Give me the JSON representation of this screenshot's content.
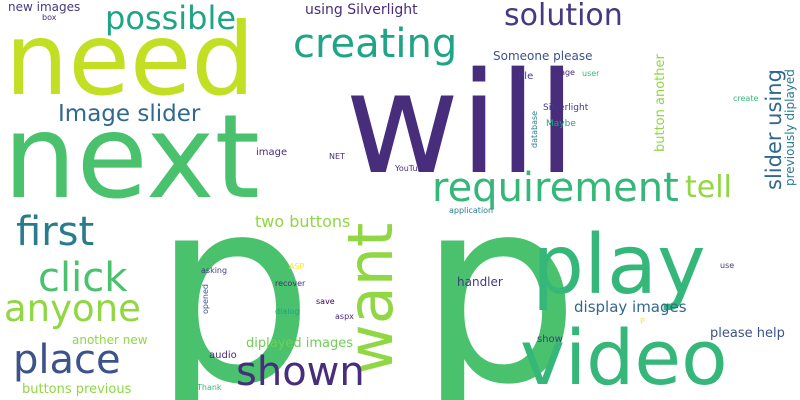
{
  "colors": {
    "purple": "#440154",
    "indigo": "#472d7b",
    "deepblue": "#443983",
    "slate": "#3b528b",
    "steel": "#31688e",
    "teal": "#287c8e",
    "teal2": "#21918c",
    "sea": "#20a486",
    "green": "#35b779",
    "brightgreen": "#4ac16d",
    "lime": "#6ece58",
    "lightlime": "#90d743",
    "yellowgreen": "#c2df23",
    "yellow": "#fde725"
  },
  "words": [
    {
      "text": "p"
    },
    {
      "text": "p"
    },
    {
      "text": "will"
    },
    {
      "text": "next"
    },
    {
      "text": "need"
    },
    {
      "text": "video"
    },
    {
      "text": "play"
    },
    {
      "text": "want"
    },
    {
      "text": "requirement"
    },
    {
      "text": "place"
    },
    {
      "text": "first"
    },
    {
      "text": "click"
    },
    {
      "text": "anyone"
    },
    {
      "text": "shown"
    },
    {
      "text": "creating"
    },
    {
      "text": "solution"
    },
    {
      "text": "possible"
    },
    {
      "text": "tell"
    },
    {
      "text": "Image slider"
    },
    {
      "text": "slider using"
    },
    {
      "text": "two buttons"
    },
    {
      "text": "display images"
    },
    {
      "text": "using Silverlight"
    },
    {
      "text": "new images"
    },
    {
      "text": "diplayed images"
    },
    {
      "text": "buttons previous"
    },
    {
      "text": "another new"
    },
    {
      "text": "please help"
    },
    {
      "text": "button another"
    },
    {
      "text": "previously diplayed"
    },
    {
      "text": "Someone please"
    },
    {
      "text": "handler"
    },
    {
      "text": "file"
    },
    {
      "text": "image"
    },
    {
      "text": "audio"
    },
    {
      "text": "show"
    },
    {
      "text": "Silverlight"
    },
    {
      "text": "Maybe"
    },
    {
      "text": "database"
    },
    {
      "text": "page"
    },
    {
      "text": "user"
    },
    {
      "text": "box"
    },
    {
      "text": "create"
    },
    {
      "text": "NET"
    },
    {
      "text": "YouTube"
    },
    {
      "text": "application"
    },
    {
      "text": "asking"
    },
    {
      "text": "ASP"
    },
    {
      "text": "recover"
    },
    {
      "text": "opened"
    },
    {
      "text": "dialog"
    },
    {
      "text": "save"
    },
    {
      "text": "aspx"
    },
    {
      "text": "use"
    },
    {
      "text": "Thank"
    },
    {
      "text": "P"
    }
  ]
}
